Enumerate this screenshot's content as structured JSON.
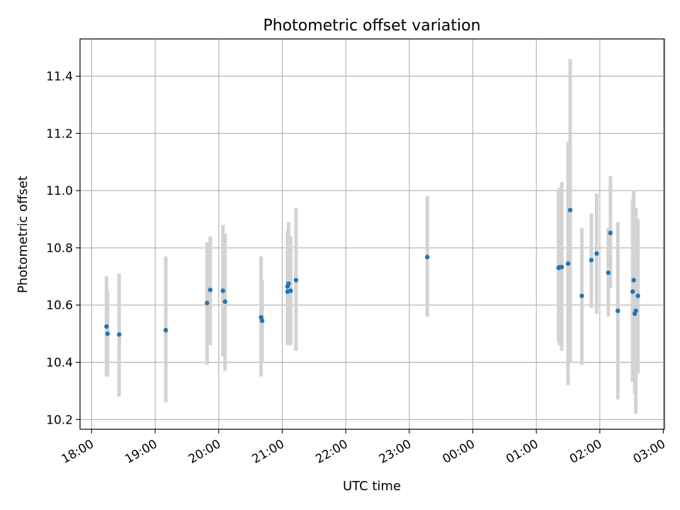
{
  "chart_data": {
    "type": "scatter",
    "title": "Photometric offset variation",
    "xlabel": "UTC time",
    "ylabel": "Photometric offset",
    "x_ticks": [
      "18:00",
      "19:00",
      "20:00",
      "21:00",
      "22:00",
      "23:00",
      "00:00",
      "01:00",
      "02:00",
      "03:00"
    ],
    "y_ticks": [
      "10.2",
      "10.4",
      "10.6",
      "10.8",
      "11.0",
      "11.2",
      "11.4"
    ],
    "y_tick_values": [
      10.2,
      10.4,
      10.6,
      10.8,
      11.0,
      11.2,
      11.4
    ],
    "xlim": [
      "17:49",
      "03:01"
    ],
    "ylim": [
      10.166,
      11.53
    ],
    "grid": true,
    "marker_color": "#1f77b4",
    "errorbar_color": "#d3d3d3",
    "points": [
      {
        "t": "18:14",
        "y": 10.525,
        "lo": 10.35,
        "hi": 10.7
      },
      {
        "t": "18:15",
        "y": 10.5,
        "lo": 10.35,
        "hi": 10.65
      },
      {
        "t": "18:26",
        "y": 10.497,
        "lo": 10.28,
        "hi": 10.71
      },
      {
        "t": "19:10",
        "y": 10.512,
        "lo": 10.26,
        "hi": 10.77
      },
      {
        "t": "19:49",
        "y": 10.607,
        "lo": 10.39,
        "hi": 10.82
      },
      {
        "t": "19:52",
        "y": 10.653,
        "lo": 10.46,
        "hi": 10.84
      },
      {
        "t": "20:04",
        "y": 10.65,
        "lo": 10.42,
        "hi": 10.88
      },
      {
        "t": "20:06",
        "y": 10.612,
        "lo": 10.37,
        "hi": 10.85
      },
      {
        "t": "20:40",
        "y": 10.557,
        "lo": 10.35,
        "hi": 10.77
      },
      {
        "t": "20:41",
        "y": 10.545,
        "lo": 10.4,
        "hi": 10.69
      },
      {
        "t": "21:05",
        "y": 10.647,
        "lo": 10.46,
        "hi": 10.85
      },
      {
        "t": "21:05",
        "y": 10.665,
        "lo": 10.46,
        "hi": 10.86
      },
      {
        "t": "21:06",
        "y": 10.675,
        "lo": 10.46,
        "hi": 10.89
      },
      {
        "t": "21:08",
        "y": 10.65,
        "lo": 10.46,
        "hi": 10.84
      },
      {
        "t": "21:13",
        "y": 10.687,
        "lo": 10.44,
        "hi": 10.94
      },
      {
        "t": "23:17",
        "y": 10.768,
        "lo": 10.56,
        "hi": 10.98
      },
      {
        "t": "01:21",
        "y": 10.73,
        "lo": 10.47,
        "hi": 11.0
      },
      {
        "t": "01:22",
        "y": 10.732,
        "lo": 10.46,
        "hi": 11.01
      },
      {
        "t": "01:24",
        "y": 10.733,
        "lo": 10.44,
        "hi": 11.03
      },
      {
        "t": "01:30",
        "y": 10.745,
        "lo": 10.32,
        "hi": 11.17
      },
      {
        "t": "01:32",
        "y": 10.932,
        "lo": 10.4,
        "hi": 11.46
      },
      {
        "t": "01:43",
        "y": 10.632,
        "lo": 10.39,
        "hi": 10.87
      },
      {
        "t": "01:52",
        "y": 10.757,
        "lo": 10.59,
        "hi": 10.92
      },
      {
        "t": "01:57",
        "y": 10.78,
        "lo": 10.57,
        "hi": 10.99
      },
      {
        "t": "02:08",
        "y": 10.713,
        "lo": 10.56,
        "hi": 10.87
      },
      {
        "t": "02:10",
        "y": 10.852,
        "lo": 10.66,
        "hi": 11.05
      },
      {
        "t": "02:17",
        "y": 10.58,
        "lo": 10.27,
        "hi": 10.89
      },
      {
        "t": "02:31",
        "y": 10.647,
        "lo": 10.33,
        "hi": 10.97
      },
      {
        "t": "02:32",
        "y": 10.687,
        "lo": 10.38,
        "hi": 11.0
      },
      {
        "t": "02:33",
        "y": 10.57,
        "lo": 10.29,
        "hi": 10.86
      },
      {
        "t": "02:34",
        "y": 10.58,
        "lo": 10.22,
        "hi": 10.94
      },
      {
        "t": "02:36",
        "y": 10.632,
        "lo": 10.36,
        "hi": 10.9
      }
    ]
  }
}
